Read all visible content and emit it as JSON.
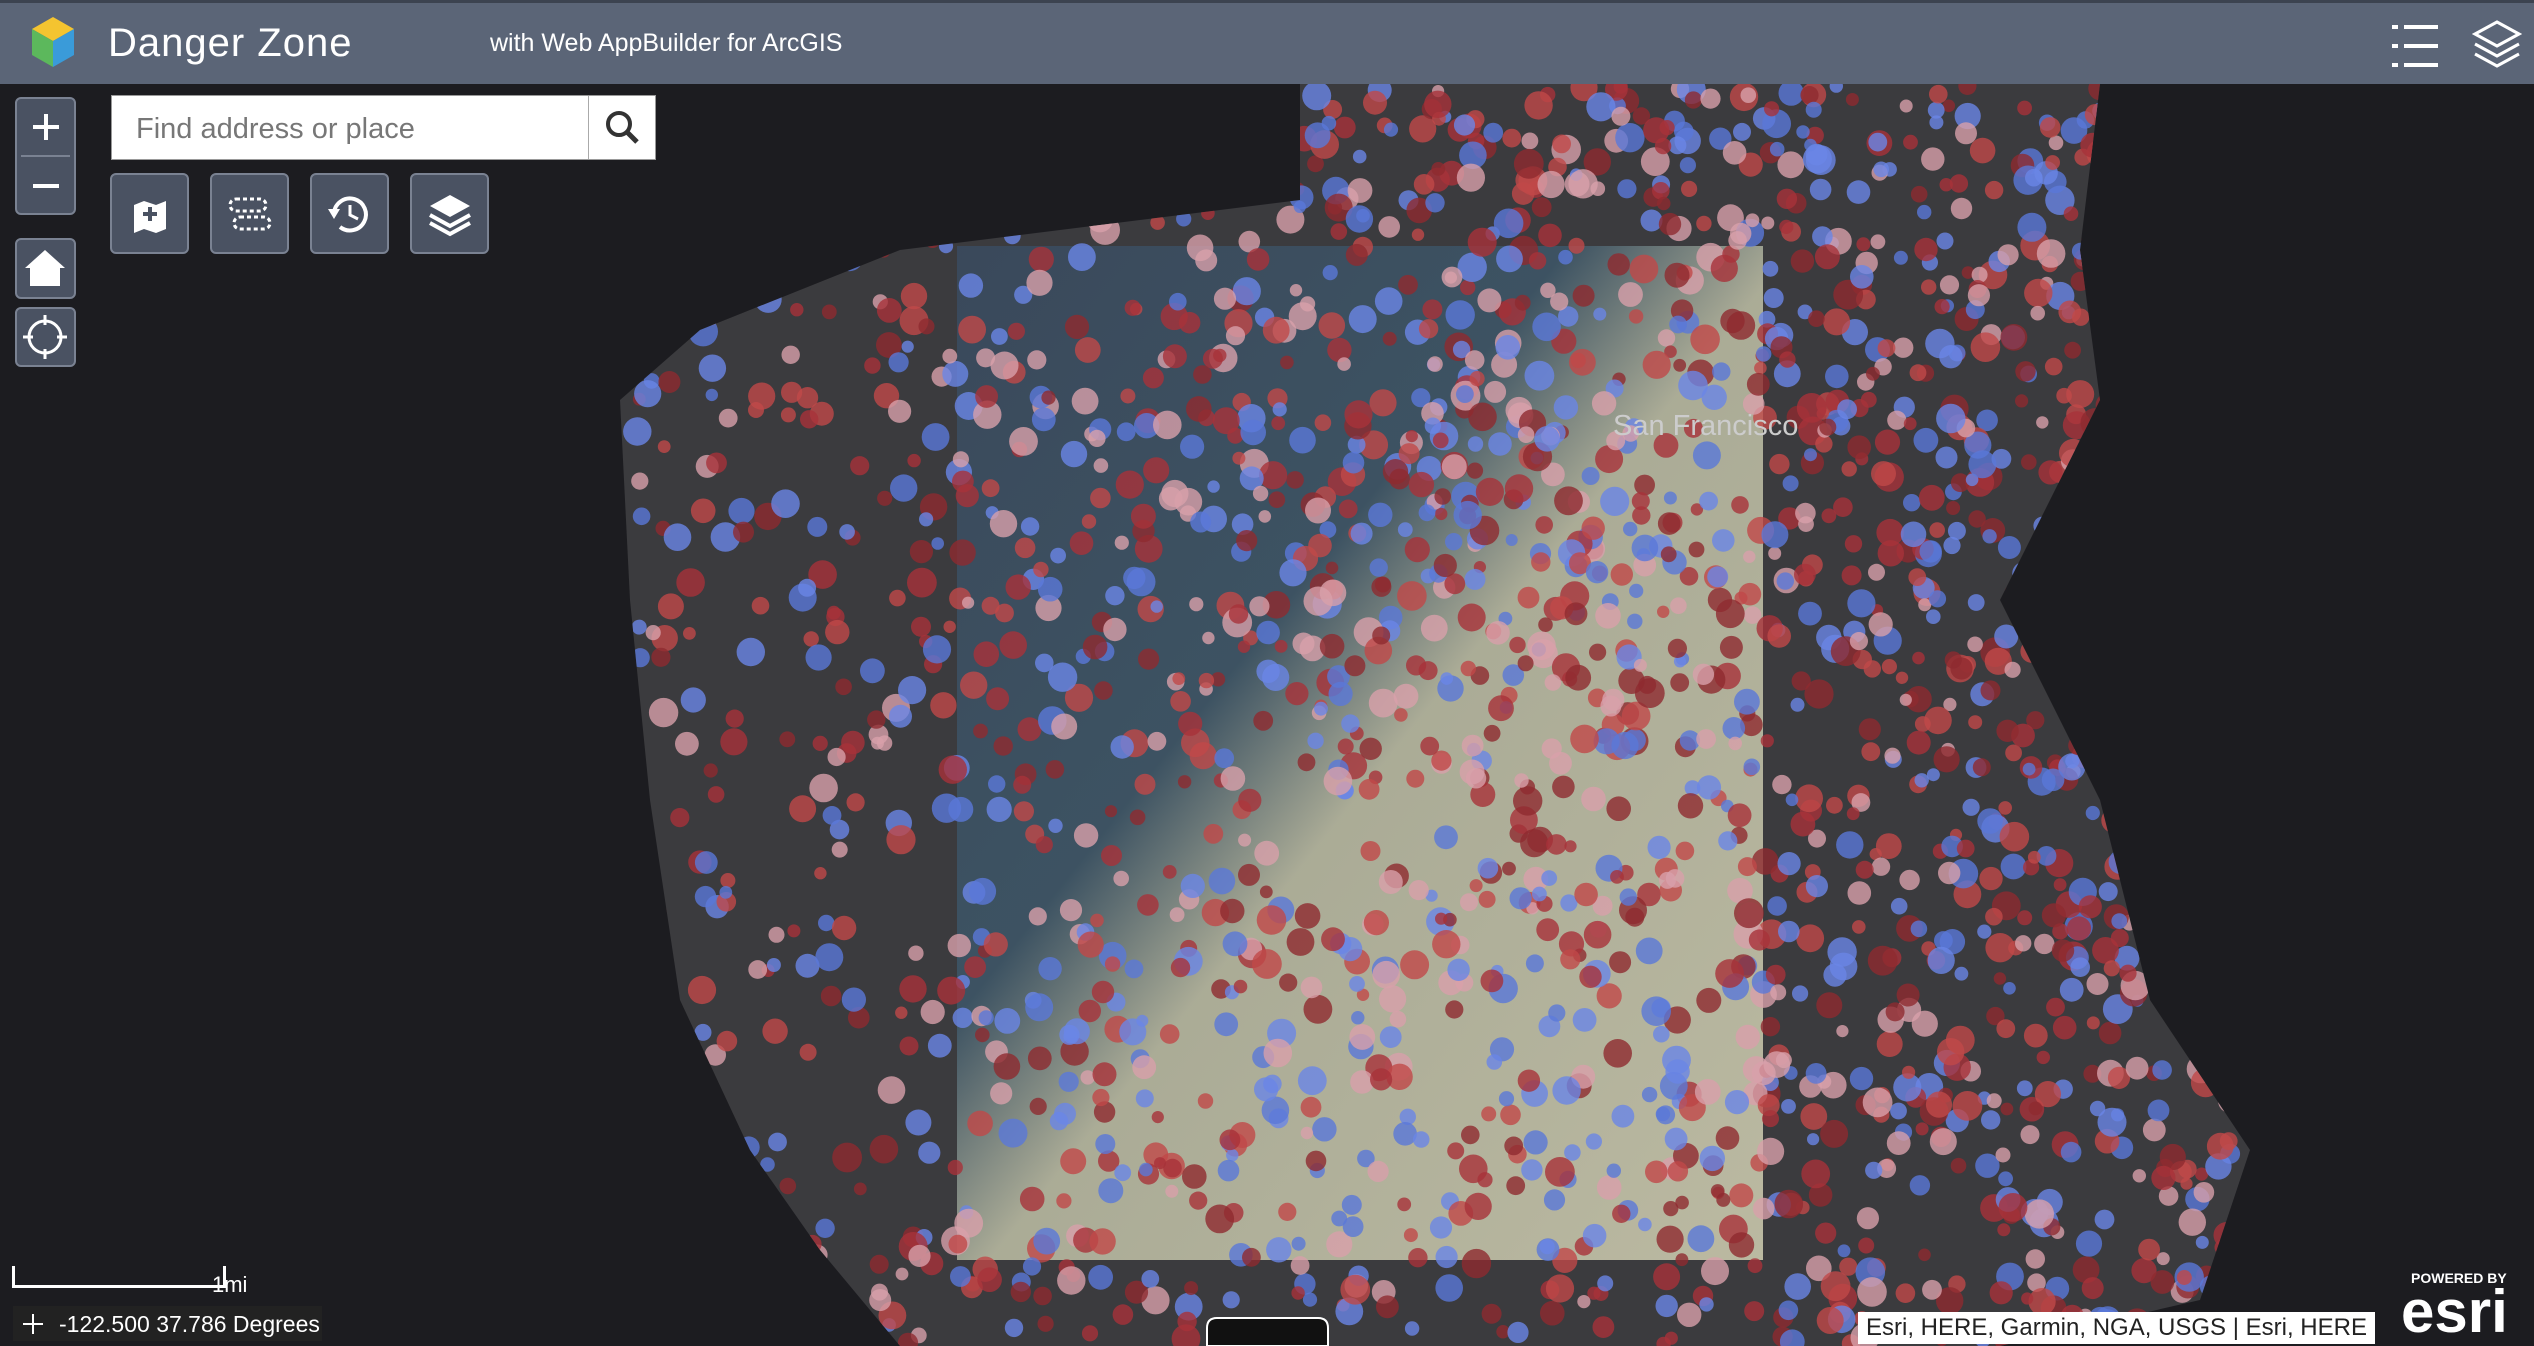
{
  "header": {
    "title": "Danger Zone",
    "subtitle": "with Web AppBuilder for ArcGIS"
  },
  "search": {
    "placeholder": "Find address or place"
  },
  "map": {
    "label": "San Francisco"
  },
  "scale_bar": {
    "label": "1mi"
  },
  "coordinates": {
    "text": "-122.500 37.786 Degrees"
  },
  "attribution": {
    "text": "Esri, HERE, Garmin, NGA, USGS | Esri, HERE"
  },
  "logo": {
    "powered_by": "POWERED BY",
    "name": "esri"
  }
}
